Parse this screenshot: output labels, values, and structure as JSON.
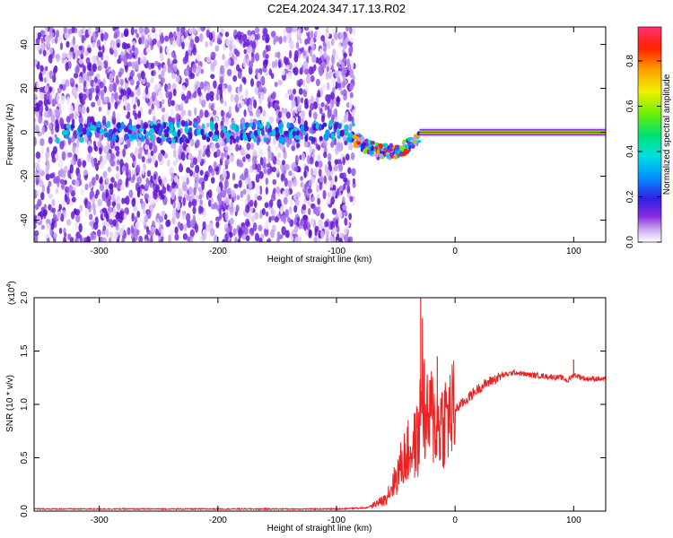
{
  "title": "C2E4.2024.347.17.13.R02",
  "colors": {
    "snr_line": "#ee2222",
    "frame": "#000000"
  },
  "chart_data": [
    {
      "type": "heatmap",
      "name": "spectrogram",
      "xlabel": "Height of straight line (km)",
      "ylabel": "Frequency (Hz)",
      "xlim": [
        -355,
        127
      ],
      "ylim": [
        -50,
        48
      ],
      "xticks": [
        -300,
        -200,
        -100,
        0,
        100
      ],
      "yticks": [
        -40,
        -20,
        0,
        20,
        40
      ],
      "colorbar": {
        "label": "Normalized spectral amplitude",
        "range": [
          0,
          0.95
        ],
        "ticks": [
          "0.0",
          "0.2",
          "0.4",
          "0.6",
          "0.8"
        ],
        "colormap": "rainbow (white-violet-blue-cyan-green-yellow-red-pink)"
      },
      "description_features": {
        "noise_region_x": [
          -355,
          -85
        ],
        "carrier_frequency": 0,
        "transition_x": [
          -85,
          -30
        ]
      }
    },
    {
      "type": "line",
      "name": "snr",
      "xlabel": "Height of straight line (km)",
      "ylabel": "SNR (10 * v/v)",
      "multiplier": "(x10",
      "multiplier_exp": "4",
      "xlim": [
        -355,
        127
      ],
      "ylim": [
        0,
        2.0
      ],
      "xticks": [
        -300,
        -200,
        -100,
        0,
        100
      ],
      "yticks": [
        "0.0",
        "0.5",
        "1.0",
        "1.5",
        "2.0"
      ],
      "series": [
        {
          "x": [
            -355,
            -300,
            -250,
            -200,
            -150,
            -100,
            -75,
            -60,
            -50,
            -45,
            -40,
            -35,
            -30,
            -28,
            -25,
            -20,
            -15,
            -10,
            -5,
            0,
            10,
            20,
            30,
            40,
            50,
            60,
            70,
            80,
            90,
            95,
            100,
            110,
            120,
            127
          ],
          "y": [
            0.02,
            0.02,
            0.02,
            0.02,
            0.02,
            0.02,
            0.03,
            0.1,
            0.3,
            0.45,
            0.55,
            0.6,
            0.7,
            1.4,
            0.8,
            0.9,
            0.8,
            0.85,
            0.9,
            0.95,
            1.05,
            1.15,
            1.22,
            1.27,
            1.3,
            1.28,
            1.27,
            1.26,
            1.25,
            1.22,
            1.28,
            1.24,
            1.24,
            1.23
          ]
        }
      ],
      "peaks": [
        {
          "x": -29,
          "y": 2.0
        },
        {
          "x": -15,
          "y": 1.45
        },
        {
          "x": 100,
          "y": 1.42
        }
      ]
    }
  ]
}
